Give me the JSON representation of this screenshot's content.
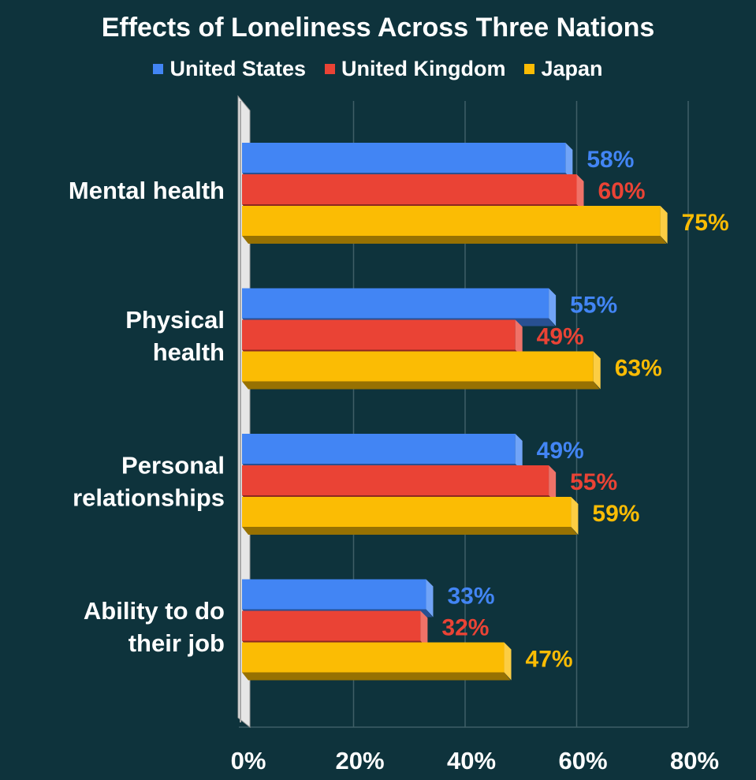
{
  "chart_data": {
    "type": "bar",
    "orientation": "horizontal",
    "style": "3d",
    "title": "Effects of Loneliness Across Three Nations",
    "categories": [
      "Mental health",
      "Physical health",
      "Personal relationships",
      "Ability to do their job"
    ],
    "category_lines": [
      [
        "Mental health"
      ],
      [
        "Physical",
        "health"
      ],
      [
        "Personal",
        "relationships"
      ],
      [
        "Ability to do",
        "their job"
      ]
    ],
    "series": [
      {
        "name": "United States",
        "color": "#4285f4",
        "values": [
          58,
          55,
          49,
          33
        ]
      },
      {
        "name": "United Kingdom",
        "color": "#ea4335",
        "values": [
          60,
          49,
          55,
          32
        ]
      },
      {
        "name": "Japan",
        "color": "#fbbc04",
        "values": [
          75,
          63,
          59,
          47
        ]
      }
    ],
    "value_suffix": "%",
    "xlim": [
      0,
      80
    ],
    "x_ticks": [
      0,
      20,
      40,
      60,
      80
    ],
    "x_tick_labels": [
      "0%",
      "20%",
      "40%",
      "60%",
      "80%"
    ],
    "grid": "vertical",
    "legend_position": "top"
  }
}
